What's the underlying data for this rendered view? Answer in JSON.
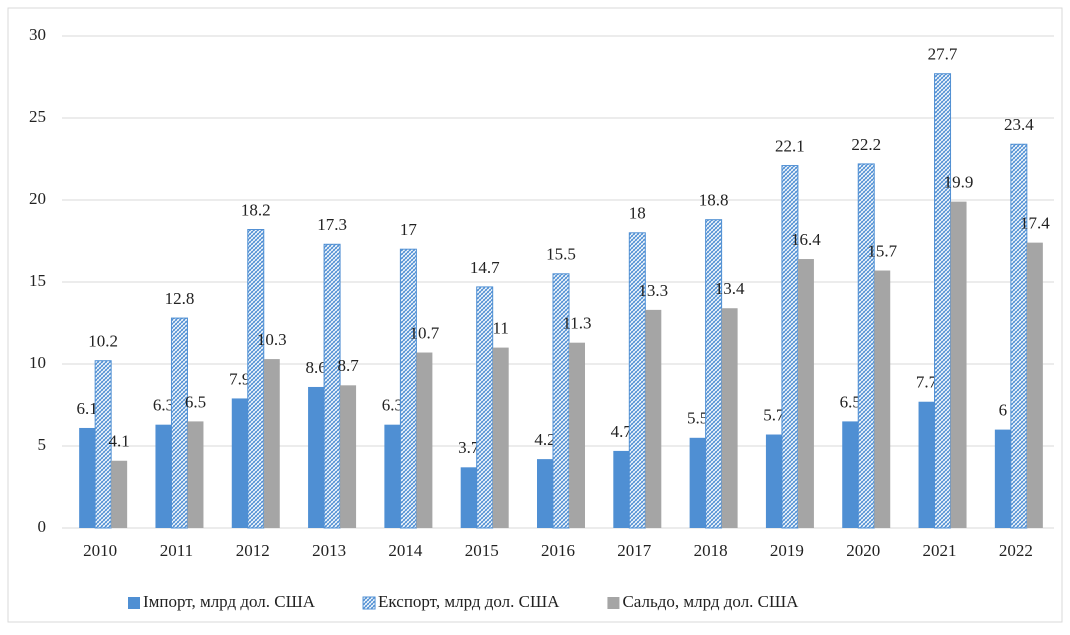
{
  "chart_data": {
    "type": "bar",
    "categories": [
      "2010",
      "2011",
      "2012",
      "2013",
      "2014",
      "2015",
      "2016",
      "2017",
      "2018",
      "2019",
      "2020",
      "2021",
      "2022"
    ],
    "series": [
      {
        "name": "Імпорт, млрд дол. США",
        "color": "#4f8fd3",
        "values": [
          6.1,
          6.3,
          7.9,
          8.6,
          6.3,
          3.7,
          4.2,
          4.7,
          5.5,
          5.7,
          6.5,
          7.7,
          6
        ]
      },
      {
        "name": "Експорт, млрд дол. США",
        "color": "#4f8fd3",
        "hatch": true,
        "values": [
          10.2,
          12.8,
          18.2,
          17.3,
          17,
          14.7,
          15.5,
          18,
          18.8,
          22.1,
          22.2,
          27.7,
          23.4
        ]
      },
      {
        "name": "Сальдо, млрд дол. США",
        "color": "#a5a5a5",
        "values": [
          4.1,
          6.5,
          10.3,
          8.7,
          10.7,
          11,
          11.3,
          13.3,
          13.4,
          16.4,
          15.7,
          19.9,
          17.4
        ]
      }
    ],
    "ylim": [
      0,
      30
    ],
    "yticks": [
      0,
      5,
      10,
      15,
      20,
      25,
      30
    ],
    "grid": true,
    "legend": "bottom"
  }
}
